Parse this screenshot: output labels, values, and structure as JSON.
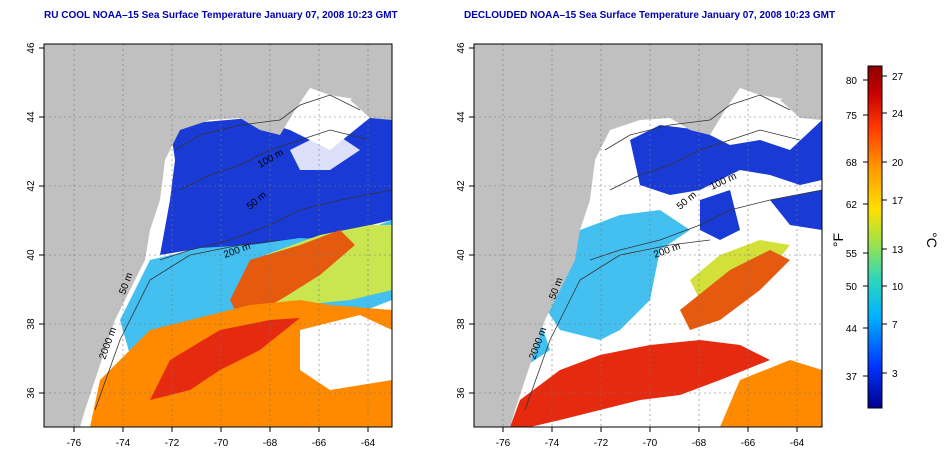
{
  "panels": [
    {
      "title": "RU COOL NOAA–15 Sea Surface Temperature January 07, 2008 10:23 GMT",
      "contours": [
        "50 m",
        "100 m",
        "200 m",
        "2000 m"
      ]
    },
    {
      "title": "DECLOUDED NOAA–15 Sea Surface Temperature January 07, 2008 10:23 GMT",
      "contours": [
        "50 m",
        "100 m",
        "200 m",
        "2000 m"
      ]
    }
  ],
  "axes": {
    "x_ticks": [
      "-76",
      "-74",
      "-72",
      "-70",
      "-68",
      "-66",
      "-64"
    ],
    "y_ticks": [
      "46",
      "44",
      "42",
      "40",
      "38",
      "36"
    ]
  },
  "colorbar": {
    "f_label": "°F",
    "c_label": "°C",
    "f_ticks": [
      "80",
      "75",
      "68",
      "62",
      "55",
      "50",
      "44",
      "37"
    ],
    "c_ticks": [
      "27",
      "24",
      "20",
      "17",
      "13",
      "10",
      "7",
      "3"
    ],
    "colors": [
      "#00008c",
      "#0033ff",
      "#00b4ff",
      "#31d7b8",
      "#9be34d",
      "#ffe000",
      "#ff9a00",
      "#ff3a00",
      "#c80000",
      "#8c0000"
    ]
  },
  "palette": {
    "land": "#c0c0c0",
    "cloud": "#ffffff",
    "cold": "#1a3ad6",
    "mid": "#43c0f0",
    "warm": "#ff8a00",
    "hot": "#e62a10",
    "gulf": "#f3e400"
  }
}
